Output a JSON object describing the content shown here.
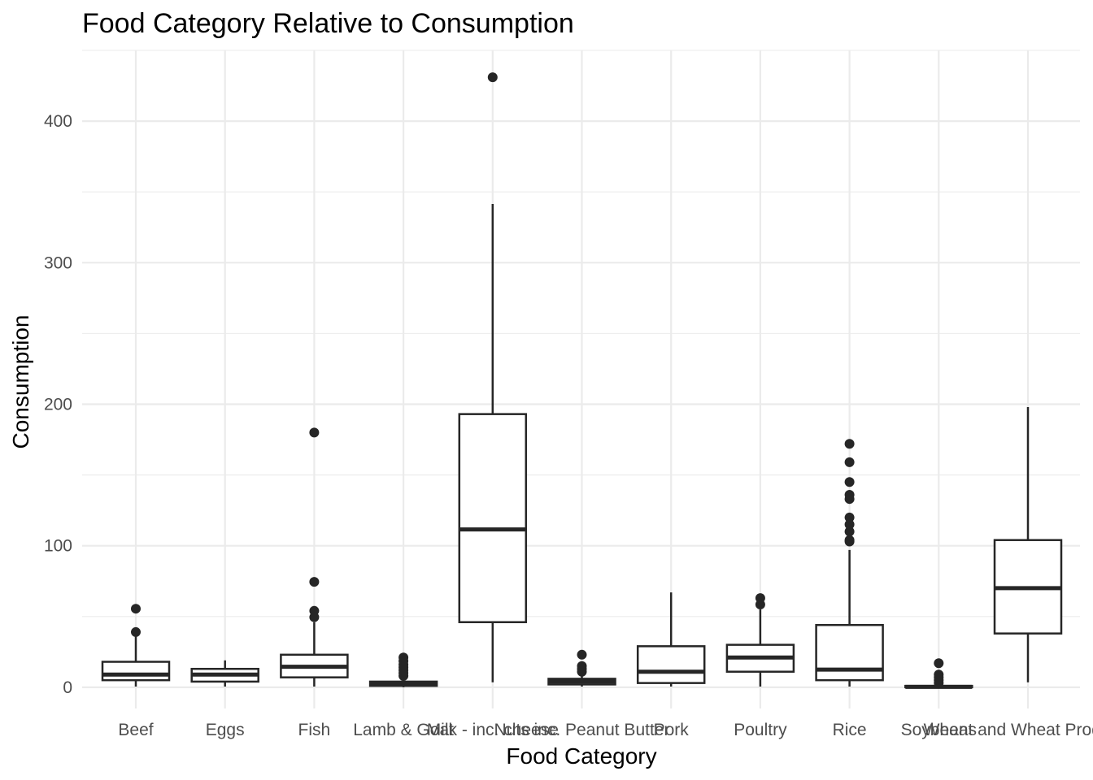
{
  "chart_data": {
    "type": "box",
    "title": "Food Category Relative to Consumption",
    "xlabel": "Food Category",
    "ylabel": "Consumption",
    "ylim": [
      -15,
      450
    ],
    "yticks": [
      0,
      100,
      200,
      300,
      400
    ],
    "grid": true,
    "legend": "none",
    "colors": {
      "box_stroke": "#262626",
      "box_fill": "#ffffff",
      "grid": "#ebebeb",
      "tick_text": "#4d4d4d"
    },
    "categories": [
      "Beef",
      "Eggs",
      "Fish",
      "Lamb & Goat",
      "Milk - inc. cheese",
      "Nuts inc. Peanut Butter",
      "Pork",
      "Poultry",
      "Rice",
      "Soybeans",
      "Wheat and Wheat Products"
    ],
    "boxes": [
      {
        "category": "Beef",
        "low": 0.5,
        "q1": 5,
        "median": 9,
        "q3": 18,
        "high": 36,
        "outliers": [
          39,
          55.5
        ]
      },
      {
        "category": "Eggs",
        "low": 0.5,
        "q1": 4,
        "median": 9,
        "q3": 13,
        "high": 19,
        "outliers": []
      },
      {
        "category": "Fish",
        "low": 0.5,
        "q1": 7,
        "median": 14.5,
        "q3": 23,
        "high": 46,
        "outliers": [
          49.5,
          54,
          74.5,
          180
        ]
      },
      {
        "category": "Lamb & Goat",
        "low": 0,
        "q1": 1,
        "median": 2,
        "q3": 4,
        "high": 6,
        "outliers": [
          8,
          10,
          12,
          14,
          16,
          18.5,
          21
        ]
      },
      {
        "category": "Milk - inc. cheese",
        "low": 3.5,
        "q1": 46,
        "median": 111.5,
        "q3": 193,
        "high": 341.5,
        "outliers": [
          431
        ]
      },
      {
        "category": "Nuts inc. Peanut Butter",
        "low": 0.5,
        "q1": 2,
        "median": 4,
        "q3": 6,
        "high": 9,
        "outliers": [
          11,
          13,
          15,
          23
        ]
      },
      {
        "category": "Pork",
        "low": 0.5,
        "q1": 3,
        "median": 11,
        "q3": 29,
        "high": 67,
        "outliers": []
      },
      {
        "category": "Poultry",
        "low": 0.5,
        "q1": 11,
        "median": 21,
        "q3": 30,
        "high": 55,
        "outliers": [
          58.5,
          63
        ]
      },
      {
        "category": "Rice",
        "low": 0.5,
        "q1": 5,
        "median": 12.5,
        "q3": 44,
        "high": 97,
        "outliers": [
          103,
          104,
          110,
          115,
          120,
          133,
          136,
          145,
          159,
          172
        ]
      },
      {
        "category": "Soybeans",
        "low": 0,
        "q1": 0,
        "median": 0.3,
        "q3": 1,
        "high": 2,
        "outliers": [
          3,
          5,
          7,
          9,
          17
        ]
      },
      {
        "category": "Wheat and Wheat Products",
        "low": 3.5,
        "q1": 38,
        "median": 70,
        "q3": 104,
        "high": 198,
        "outliers": []
      }
    ]
  }
}
